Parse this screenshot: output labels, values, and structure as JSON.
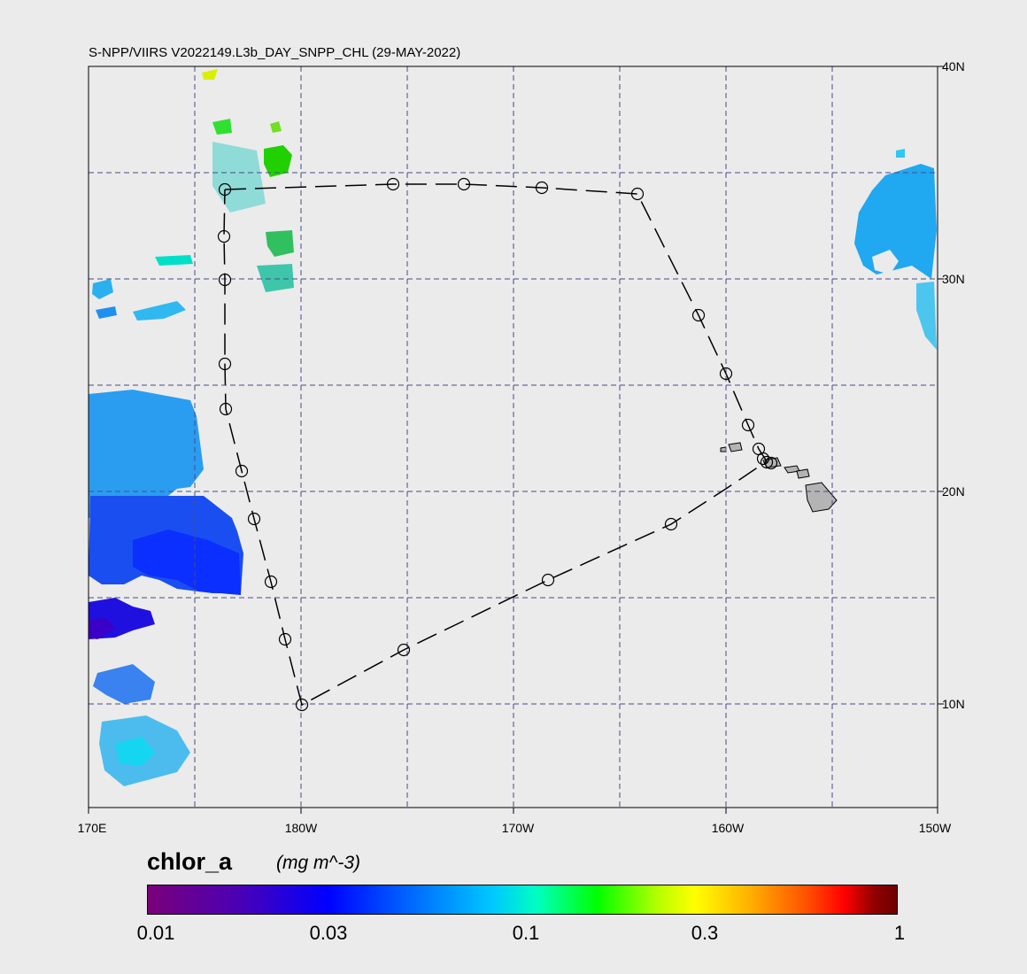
{
  "title": "S-NPP/VIIRS V2022149.L3b_DAY_SNPP_CHL (29-MAY-2022)",
  "lon_labels": [
    "170E",
    "180W",
    "170W",
    "160W",
    "150W"
  ],
  "lat_labels": [
    "40N",
    "30N",
    "20N",
    "10N"
  ],
  "colorbar": {
    "title": "chlor_a",
    "units": "(mg m^-3)",
    "ticks": [
      "0.01",
      "0.03",
      "0.1",
      "0.3",
      "1"
    ]
  },
  "colors": {
    "background": "#ebebeb",
    "grid": "#4a4a8a",
    "track": "#000000",
    "land": "#b4b4b4"
  }
}
